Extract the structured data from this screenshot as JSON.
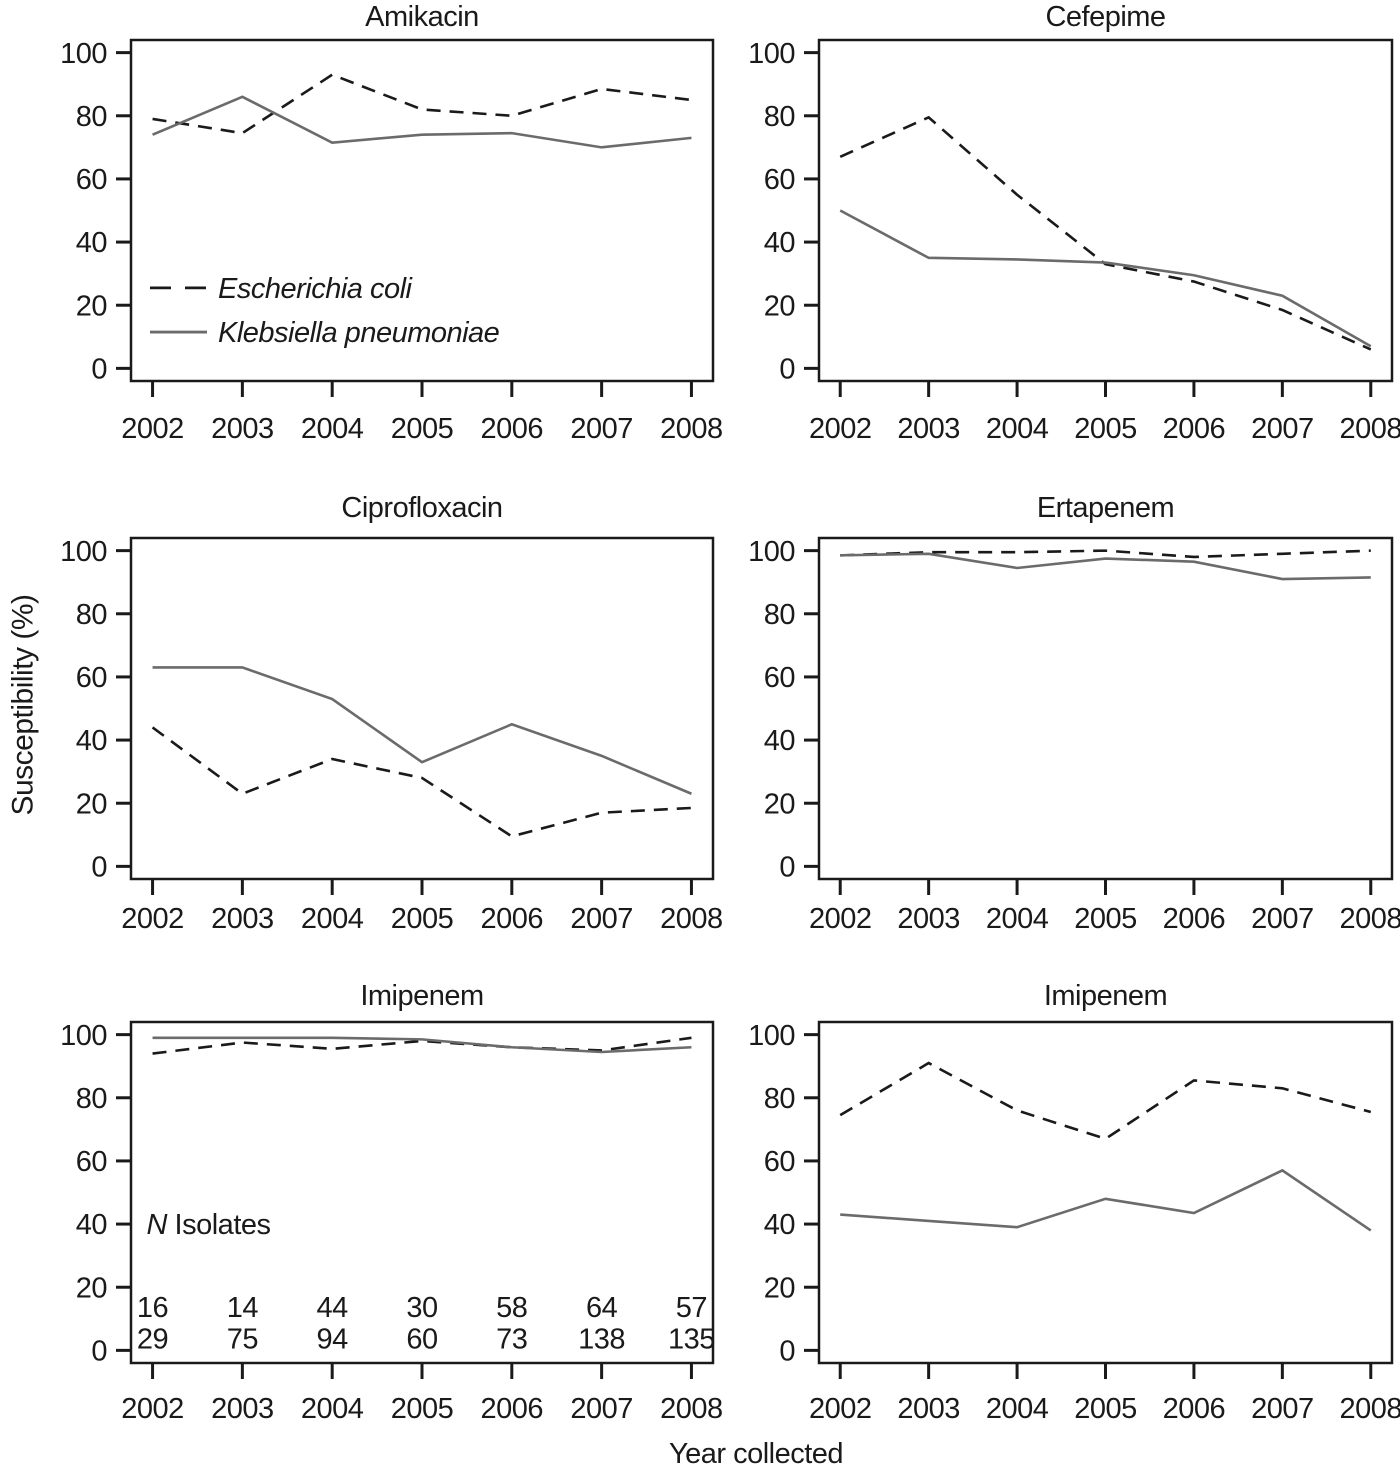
{
  "figure": {
    "xlabel": "Year collected",
    "ylabel": "Susceptibility (%)",
    "years": [
      2002,
      2003,
      2004,
      2005,
      2006,
      2007,
      2008
    ],
    "yticks": [
      0,
      20,
      40,
      60,
      80,
      100
    ]
  },
  "legend": {
    "position": "inside first panel, lower left",
    "items": [
      {
        "label": "Escherichia coli",
        "style": "dashed"
      },
      {
        "label": "Klebsiella pneumoniae",
        "style": "solid"
      }
    ]
  },
  "colors": {
    "ecoli_line": "#1a1a1a",
    "kpneumoniae_line": "#6b6b6b",
    "axis": "#1a1a1a",
    "text": "#1a1a1a",
    "background": "#ffffff"
  },
  "chart_data": [
    {
      "id": "amikacin",
      "type": "line",
      "title": "Amikacin",
      "x": [
        2002,
        2003,
        2004,
        2005,
        2006,
        2007,
        2008
      ],
      "ylim": [
        0,
        100
      ],
      "grid": false,
      "show_legend": true,
      "series": [
        {
          "name": "Escherichia coli",
          "style": "dashed",
          "values": [
            79,
            74.5,
            93,
            82,
            80,
            88.5,
            85
          ]
        },
        {
          "name": "Klebsiella pneumoniae",
          "style": "solid",
          "values": [
            74,
            86,
            71.5,
            74,
            74.5,
            70,
            73
          ]
        }
      ]
    },
    {
      "id": "cefepime",
      "type": "line",
      "title": "Cefepime",
      "x": [
        2002,
        2003,
        2004,
        2005,
        2006,
        2007,
        2008
      ],
      "ylim": [
        0,
        100
      ],
      "grid": false,
      "show_legend": false,
      "series": [
        {
          "name": "Escherichia coli",
          "style": "dashed",
          "values": [
            67,
            79.5,
            55,
            33,
            27.5,
            18.5,
            6
          ]
        },
        {
          "name": "Klebsiella pneumoniae",
          "style": "solid",
          "values": [
            50,
            35,
            34.5,
            33.5,
            29.5,
            23,
            7
          ]
        }
      ]
    },
    {
      "id": "ciprofloxacin",
      "type": "line",
      "title": "Ciprofloxacin",
      "x": [
        2002,
        2003,
        2004,
        2005,
        2006,
        2007,
        2008
      ],
      "ylim": [
        0,
        100
      ],
      "grid": false,
      "show_legend": false,
      "series": [
        {
          "name": "Escherichia coli",
          "style": "dashed",
          "values": [
            44,
            23,
            34,
            28,
            9.5,
            17,
            18.5
          ]
        },
        {
          "name": "Klebsiella pneumoniae",
          "style": "solid",
          "values": [
            63,
            63,
            53,
            33,
            45,
            35,
            23
          ]
        }
      ]
    },
    {
      "id": "ertapenem",
      "type": "line",
      "title": "Ertapenem",
      "x": [
        2002,
        2003,
        2004,
        2005,
        2006,
        2007,
        2008
      ],
      "ylim": [
        0,
        100
      ],
      "grid": false,
      "show_legend": false,
      "series": [
        {
          "name": "Escherichia coli",
          "style": "dashed",
          "values": [
            98.5,
            99.5,
            99.5,
            100,
            98,
            99,
            100
          ]
        },
        {
          "name": "Klebsiella pneumoniae",
          "style": "solid",
          "values": [
            98.5,
            99,
            94.5,
            97.5,
            96.5,
            91,
            91.5
          ]
        }
      ]
    },
    {
      "id": "imipenem-left",
      "type": "line",
      "title": "Imipenem",
      "x": [
        2002,
        2003,
        2004,
        2005,
        2006,
        2007,
        2008
      ],
      "ylim": [
        0,
        100
      ],
      "grid": false,
      "show_legend": false,
      "series": [
        {
          "name": "Escherichia coli",
          "style": "dashed",
          "values": [
            94,
            97.5,
            95.5,
            98,
            96,
            95,
            99
          ]
        },
        {
          "name": "Klebsiella pneumoniae",
          "style": "solid",
          "values": [
            99,
            99,
            99,
            98.5,
            96,
            94.5,
            96
          ]
        }
      ],
      "n_isolates": {
        "label_prefix_italic": "N",
        "label_suffix": " Isolates",
        "ecoli": [
          16,
          14,
          44,
          30,
          58,
          64,
          57
        ],
        "kpneumoniae": [
          29,
          75,
          94,
          60,
          73,
          138,
          135
        ]
      }
    },
    {
      "id": "imipenem-right",
      "type": "line",
      "title": "Imipenem",
      "x": [
        2002,
        2003,
        2004,
        2005,
        2006,
        2007,
        2008
      ],
      "ylim": [
        0,
        100
      ],
      "grid": false,
      "show_legend": false,
      "series": [
        {
          "name": "Escherichia coli",
          "style": "dashed",
          "values": [
            74.5,
            91,
            76,
            67,
            85.5,
            83,
            75.5
          ]
        },
        {
          "name": "Klebsiella pneumoniae",
          "style": "solid",
          "values": [
            43,
            41,
            39,
            48,
            43.5,
            57,
            38
          ]
        }
      ]
    }
  ]
}
